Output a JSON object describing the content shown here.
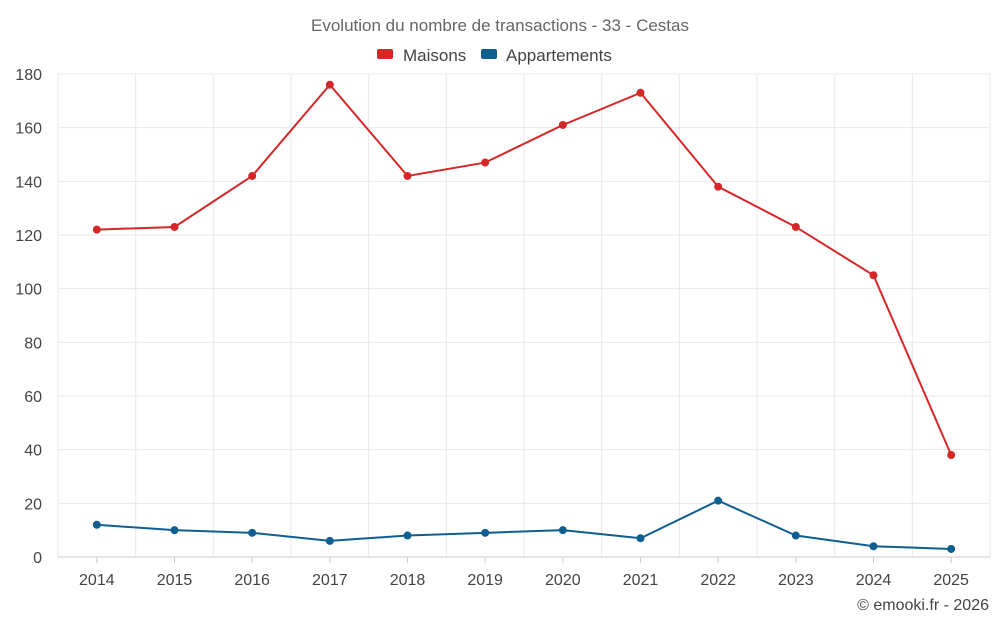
{
  "chart_data": {
    "type": "line",
    "title": "Evolution du nombre de transactions - 33 - Cestas",
    "xlabel": "",
    "ylabel": "",
    "categories": [
      "2014",
      "2015",
      "2016",
      "2017",
      "2018",
      "2019",
      "2020",
      "2021",
      "2022",
      "2023",
      "2024",
      "2025"
    ],
    "ylim": [
      0,
      180
    ],
    "yticks": [
      0,
      20,
      40,
      60,
      80,
      100,
      120,
      140,
      160,
      180
    ],
    "grid": true,
    "legend_position": "top-center",
    "series": [
      {
        "name": "Maisons",
        "color": "#d62728",
        "values": [
          122,
          123,
          142,
          176,
          142,
          147,
          161,
          173,
          138,
          123,
          105,
          38
        ]
      },
      {
        "name": "Appartements",
        "color": "#0e5e8f",
        "values": [
          12,
          10,
          9,
          6,
          8,
          9,
          10,
          7,
          21,
          8,
          4,
          3
        ]
      }
    ]
  },
  "credit": "© emooki.fr - 2026"
}
